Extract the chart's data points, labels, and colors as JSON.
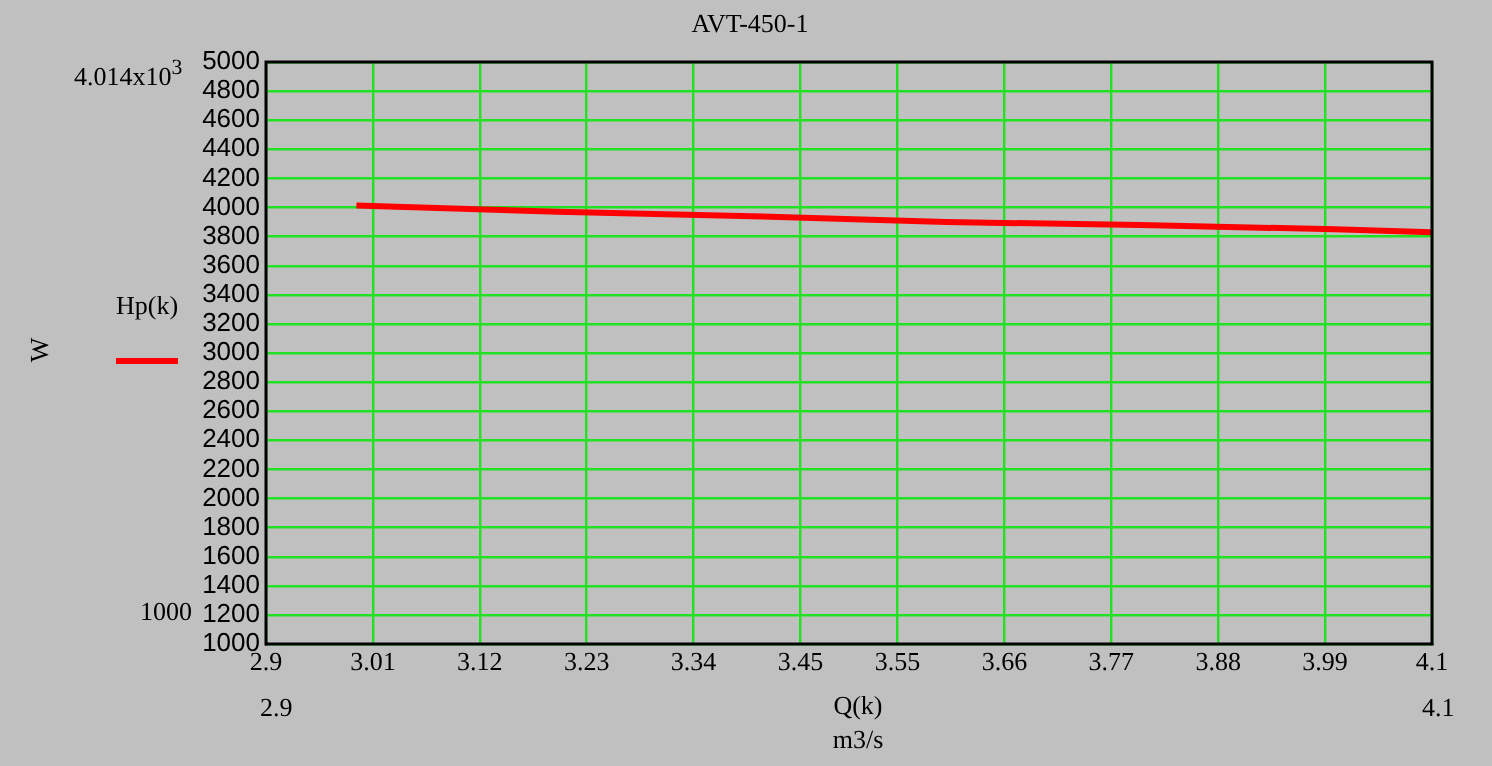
{
  "chart_data": {
    "type": "line",
    "title": "AVT-450-1",
    "xlabel": "Q(k)",
    "annotations": [
      "4.014x10$^{3}$",
      "1000",
      "2.9",
      "4.1",
      "m3/s",
      "W"
    ],
    "x": [
      2.993,
      3.2,
      3.4,
      3.6,
      3.8,
      4.0,
      4.1
    ],
    "series": [
      {
        "name": "Hp(k)",
        "color": "#ff0000",
        "values": [
          4014,
          3970,
          3940,
          3900,
          3880,
          3850,
          3830
        ]
      }
    ],
    "xlim": [
      2.9,
      4.1
    ],
    "xticks": [
      2.9,
      3.01,
      3.12,
      3.23,
      3.34,
      3.45,
      3.55,
      3.66,
      3.77,
      3.88,
      3.99,
      4.1
    ],
    "ylim": [
      1000,
      5000
    ],
    "yticks": [
      1000,
      1200,
      1400,
      1600,
      1800,
      2000,
      2200,
      2400,
      2600,
      2800,
      3000,
      3200,
      3400,
      3600,
      3800,
      4000,
      4200,
      4400,
      4600,
      4800,
      5000
    ],
    "grid": true,
    "legend": "left",
    "marker": "none",
    "line_style": "solid"
  }
}
